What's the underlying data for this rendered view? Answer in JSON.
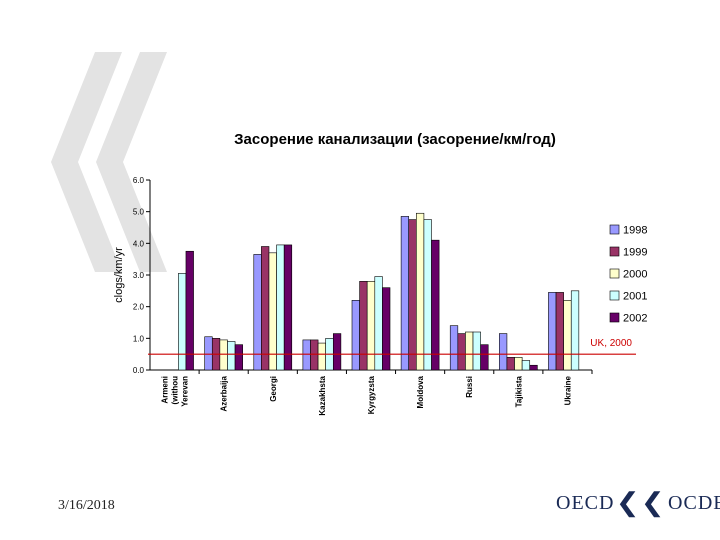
{
  "chart_data": {
    "type": "bar",
    "title": "Засорение канализации (засорение/км/год)",
    "ylabel": "clogs/km/yr",
    "xlabel": "",
    "ylim": [
      0,
      6
    ],
    "yticks": [
      "0.0",
      "1.0",
      "2.0",
      "3.0",
      "4.0",
      "5.0",
      "6.0"
    ],
    "grid": false,
    "legend_position": "right",
    "categories": [
      "Armenia (without Yerevan)",
      "Azerbaijan",
      "Georgia",
      "Kazakhstan",
      "Kyrgyzstan",
      "Moldova",
      "Russia",
      "Tajikistan",
      "Ukraine"
    ],
    "category_labels": [
      [
        "Armeni",
        "(withou",
        "Yerevan"
      ],
      [
        "Azerbaija"
      ],
      [
        "Georgi"
      ],
      [
        "Kazakhsta"
      ],
      [
        "Kyrgyzsta"
      ],
      [
        "Moldova"
      ],
      [
        "Russi"
      ],
      [
        "Tajikista"
      ],
      [
        "Ukraine"
      ]
    ],
    "series": [
      {
        "name": "1998",
        "color": "#9999ff",
        "values": [
          null,
          1.05,
          3.65,
          0.95,
          2.2,
          4.85,
          1.4,
          1.15,
          2.45
        ]
      },
      {
        "name": "1999",
        "color": "#993366",
        "values": [
          null,
          1.0,
          3.9,
          0.95,
          2.8,
          4.75,
          1.15,
          0.4,
          2.45
        ]
      },
      {
        "name": "2000",
        "color": "#ffffcc",
        "values": [
          null,
          0.95,
          3.7,
          0.85,
          2.8,
          4.95,
          1.2,
          0.4,
          2.2
        ]
      },
      {
        "name": "2001",
        "color": "#ccffff",
        "values": [
          3.05,
          0.9,
          3.95,
          1.0,
          2.95,
          4.75,
          1.2,
          0.3,
          2.5
        ]
      },
      {
        "name": "2002",
        "color": "#660066",
        "values": [
          3.75,
          0.8,
          3.95,
          1.15,
          2.6,
          4.1,
          0.8,
          0.15,
          null
        ]
      }
    ],
    "reference_line": {
      "label": "UK, 2000",
      "value": 0.5,
      "color": "#cc0000"
    }
  },
  "footer": {
    "date": "3/16/2018",
    "logo_left": "OECD",
    "logo_right": "OCDE"
  },
  "decor": {
    "mark_color": "#e3e3e3"
  }
}
